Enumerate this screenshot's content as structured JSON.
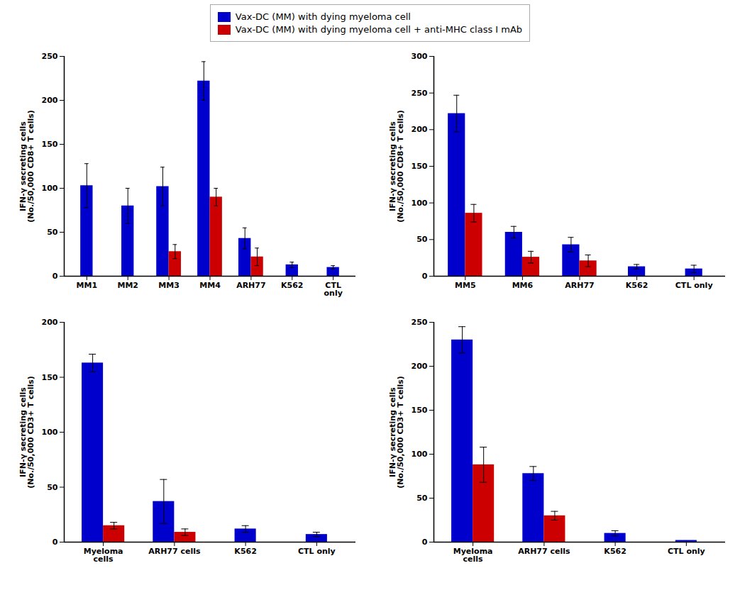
{
  "chart_data": [
    {
      "type": "bar",
      "categories": [
        "MM1",
        "MM2",
        "MM3",
        "MM4",
        "ARH77",
        "K562",
        "CTL\nonly"
      ],
      "series": [
        {
          "name": "Vax-DC (MM) with dying myeloma cell",
          "color": "#0000CC",
          "values": [
            103,
            80,
            102,
            222,
            43,
            13,
            10
          ],
          "errors": [
            25,
            20,
            22,
            22,
            12,
            3,
            2
          ]
        },
        {
          "name": "Vax-DC (MM) with dying myeloma cell + anti-MHC class I mAb",
          "color": "#CC0000",
          "values": [
            null,
            null,
            28,
            90,
            22,
            null,
            null
          ],
          "errors": [
            null,
            null,
            8,
            10,
            10,
            null,
            null
          ]
        }
      ],
      "ylabel": "IFN-γ secreting cells\n(No./50,000 CD8+ T cells)",
      "ylim": [
        0,
        250
      ],
      "yticks": [
        0,
        50,
        100,
        150,
        200,
        250
      ],
      "grid": false
    },
    {
      "type": "bar",
      "categories": [
        "MM5",
        "MM6",
        "ARH77",
        "K562",
        "CTL only"
      ],
      "series": [
        {
          "name": "Vax-DC (MM) with dying myeloma cell",
          "color": "#0000CC",
          "values": [
            222,
            60,
            43,
            13,
            10
          ],
          "errors": [
            25,
            8,
            10,
            3,
            5
          ]
        },
        {
          "name": "Vax-DC (MM) with dying myeloma cell + anti-MHC class I mAb",
          "color": "#CC0000",
          "values": [
            86,
            26,
            21,
            null,
            null
          ],
          "errors": [
            12,
            8,
            8,
            null,
            null
          ]
        }
      ],
      "ylabel": "IFN-γ secreting cells\n(No./50,000 CD8+ T cells)",
      "ylim": [
        0,
        300
      ],
      "yticks": [
        0,
        50,
        100,
        150,
        200,
        250,
        300
      ],
      "grid": false
    },
    {
      "type": "bar",
      "categories": [
        "Myeloma\ncells",
        "ARH77 cells",
        "K562",
        "CTL only"
      ],
      "series": [
        {
          "name": "Vax-DC (MM) with dying myeloma cell",
          "color": "#0000CC",
          "values": [
            163,
            37,
            12,
            7
          ],
          "errors": [
            8,
            20,
            3,
            2
          ]
        },
        {
          "name": "Vax-DC (MM) with dying myeloma cell + anti-MHC class I mAb",
          "color": "#CC0000",
          "values": [
            15,
            9,
            null,
            null
          ],
          "errors": [
            3,
            3,
            null,
            null
          ]
        }
      ],
      "ylabel": "IFN-γ secreting cells\n(No./50,000 CD3+ T cells)",
      "ylim": [
        0,
        200
      ],
      "yticks": [
        0,
        50,
        100,
        150,
        200
      ],
      "grid": false
    },
    {
      "type": "bar",
      "categories": [
        "Myeloma\ncells",
        "ARH77 cells",
        "K562",
        "CTL only"
      ],
      "series": [
        {
          "name": "Vax-DC (MM) with dying myeloma cell",
          "color": "#0000CC",
          "values": [
            230,
            78,
            10,
            2
          ],
          "errors": [
            15,
            8,
            3,
            null
          ]
        },
        {
          "name": "Vax-DC (MM) with dying myeloma cell + anti-MHC class I mAb",
          "color": "#CC0000",
          "values": [
            88,
            30,
            null,
            null
          ],
          "errors": [
            20,
            5,
            null,
            null
          ]
        }
      ],
      "ylabel": "IFN-γ secreting cells\n(No./50,000 CD3+ T cells)",
      "ylim": [
        0,
        250
      ],
      "yticks": [
        0,
        50,
        100,
        150,
        200,
        250
      ],
      "grid": false
    }
  ]
}
